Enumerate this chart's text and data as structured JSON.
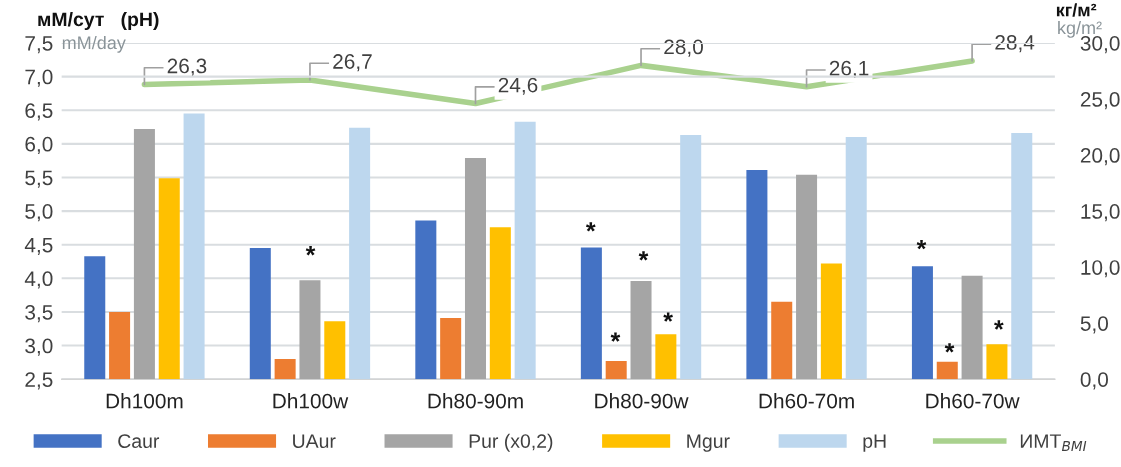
{
  "chart_data": {
    "type": "bar",
    "categories": [
      "Dh100m",
      "Dh100w",
      "Dh80-90m",
      "Dh80-90w",
      "Dh60-70m",
      "Dh60-70w"
    ],
    "series": [
      {
        "name": "Caur",
        "color": "#4472c4",
        "values": [
          4.33,
          4.45,
          4.86,
          4.46,
          5.61,
          4.18
        ]
      },
      {
        "name": "UAur",
        "color": "#ed7d31",
        "values": [
          3.5,
          2.8,
          3.41,
          2.77,
          3.65,
          2.76
        ]
      },
      {
        "name": "Pur (x0,2)",
        "color": "#a5a5a5",
        "values": [
          6.22,
          3.97,
          5.79,
          3.96,
          5.54,
          4.04
        ]
      },
      {
        "name": "Mgur",
        "color": "#ffc000",
        "values": [
          5.49,
          3.36,
          4.76,
          3.17,
          4.22,
          3.02
        ]
      },
      {
        "name": "pH",
        "color": "#bdd7ee",
        "values": [
          6.45,
          6.24,
          6.33,
          6.13,
          6.1,
          6.16
        ]
      },
      {
        "name": "ИМТ$_{BMI}$",
        "type": "line",
        "axis": "y2",
        "color": "#a9d18e",
        "values": [
          26.3,
          26.7,
          24.6,
          28.0,
          26.1,
          28.4
        ],
        "value_labels": [
          "26,3",
          "26,7",
          "24,6",
          "28,0",
          "26,1",
          "28,4"
        ]
      }
    ],
    "ylabel": "мМ/сут   (pH)",
    "y2label": "кг/м²",
    "ylim": [
      2.5,
      7.5
    ],
    "yticks": [
      {
        "value": 2.5,
        "label": "2,5"
      },
      {
        "value": 3.0,
        "label": "3,0"
      },
      {
        "value": 3.5,
        "label": "3,5"
      },
      {
        "value": 4.0,
        "label": "4,0"
      },
      {
        "value": 4.5,
        "label": "4,5"
      },
      {
        "value": 5.0,
        "label": "5,0"
      },
      {
        "value": 5.5,
        "label": "5,5"
      },
      {
        "value": 6.0,
        "label": "6,0"
      },
      {
        "value": 6.5,
        "label": "6,5"
      },
      {
        "value": 7.0,
        "label": "7,0"
      },
      {
        "value": 7.5,
        "label": "7,5"
      }
    ],
    "y2lim": [
      0,
      30
    ],
    "y2ticks": [
      {
        "value": 0,
        "label": "0,0"
      },
      {
        "value": 5,
        "label": "5,0"
      },
      {
        "value": 10,
        "label": "10,0"
      },
      {
        "value": 15,
        "label": "15,0"
      },
      {
        "value": 20,
        "label": "20,0"
      },
      {
        "value": 25,
        "label": "25,0"
      },
      {
        "value": 30,
        "label": "30,0"
      }
    ],
    "annotations": [
      "mM/day",
      "kg/m²",
      "*",
      "*",
      "*",
      "*",
      "*",
      "*",
      "*",
      "*"
    ],
    "grid": "y",
    "legend": "bottom"
  }
}
